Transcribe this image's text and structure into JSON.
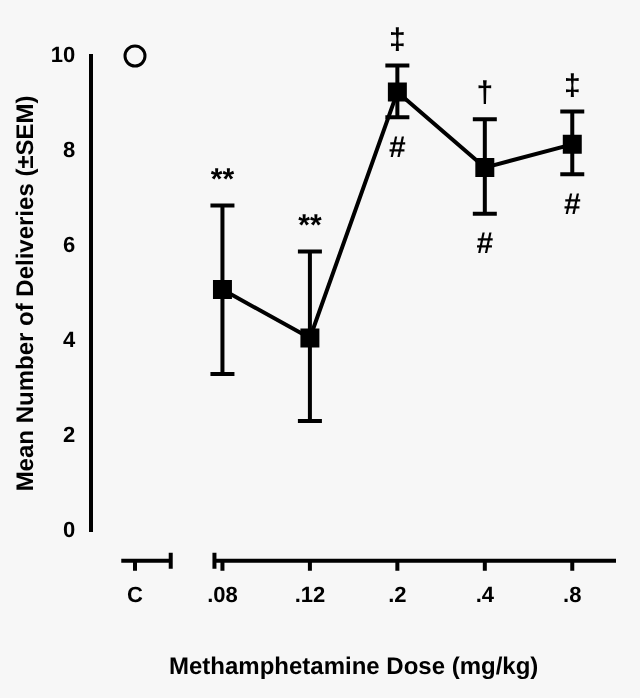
{
  "chart_data": {
    "type": "line",
    "xlabel": "Methamphetamine Dose (mg/kg)",
    "ylabel": "Mean Number of Deliveries (±SEM)",
    "categories": [
      "C",
      ".08",
      ".12",
      ".2",
      ".4",
      ".8"
    ],
    "ylim": [
      0,
      10
    ],
    "yticks": [
      0,
      2,
      4,
      6,
      8,
      10
    ],
    "series": [
      {
        "type": "scatter",
        "color": "#000000",
        "marker": "circle",
        "values": [
          10,
          null,
          null,
          null,
          null,
          null
        ]
      },
      {
        "type": "line",
        "color": "#000000",
        "marker": "square",
        "line_style": "solid",
        "values": [
          null,
          5.08,
          4.06,
          9.24,
          7.65,
          8.14
        ],
        "errors": [
          null,
          [
            3.3,
            6.85
          ],
          [
            2.31,
            5.88
          ],
          [
            8.71,
            9.8
          ],
          [
            6.68,
            8.67
          ],
          [
            7.51,
            8.83
          ]
        ]
      }
    ],
    "annotations": [
      {
        "text": "**",
        "x": ".08",
        "y": 6.85
      },
      {
        "text": "**",
        "x": ".12",
        "y": 5.88
      },
      {
        "text": "‡",
        "x": ".2",
        "y": 9.8
      },
      {
        "text": "#",
        "x": ".2",
        "y": 8.71
      },
      {
        "text": "†",
        "x": ".4",
        "y": 8.67
      },
      {
        "text": "#",
        "x": ".4",
        "y": 6.68
      },
      {
        "text": "‡",
        "x": ".8",
        "y": 8.83
      },
      {
        "text": "#",
        "x": ".8",
        "y": 7.51
      }
    ]
  }
}
